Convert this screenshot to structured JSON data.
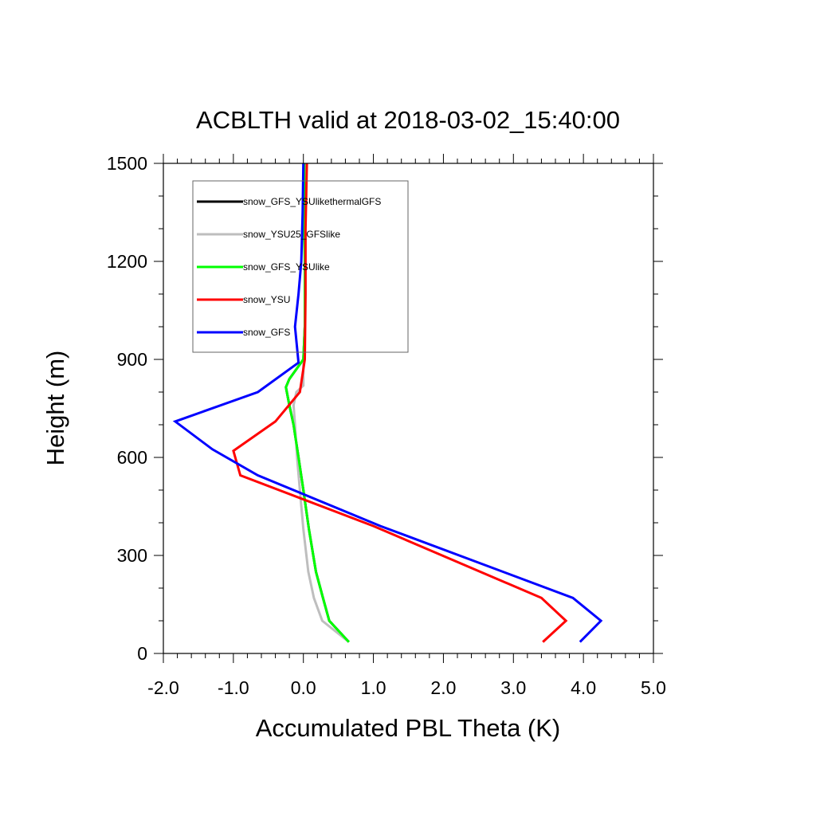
{
  "chart_data": {
    "type": "line",
    "title": "ACBLTH valid at 2018-03-02_15:40:00",
    "xlabel": "Accumulated PBL Theta (K)",
    "ylabel": "Height (m)",
    "xlim": [
      -2.0,
      5.0
    ],
    "ylim": [
      0,
      1500
    ],
    "x_ticks": [
      -2.0,
      -1.0,
      0.0,
      1.0,
      2.0,
      3.0,
      4.0,
      5.0
    ],
    "x_tick_labels": [
      "-2.0",
      "-1.0",
      "0.0",
      "1.0",
      "2.0",
      "3.0",
      "4.0",
      "5.0"
    ],
    "y_ticks": [
      0,
      300,
      600,
      900,
      1200,
      1500
    ],
    "y_tick_labels": [
      "0",
      "300",
      "600",
      "900",
      "1200",
      "1500"
    ],
    "grid": false,
    "legend_position": "top-left",
    "series": [
      {
        "name": "snow_GFS_YSUlikethermalGFS",
        "color": "#000000",
        "x": [
          0.65,
          0.37,
          0.28,
          0.18,
          0.08,
          0.0,
          -0.07,
          -0.14,
          -0.2,
          -0.25,
          -0.2,
          0.0,
          0.02,
          0.02,
          0.01,
          0.01
        ],
        "y": [
          35,
          100,
          170,
          250,
          380,
          500,
          600,
          700,
          760,
          815,
          840,
          900,
          1000,
          1200,
          1400,
          1500
        ]
      },
      {
        "name": "snow_YSU25_GFSlike",
        "color": "#bebebe",
        "x": [
          0.65,
          0.27,
          0.15,
          0.07,
          0.0,
          -0.05,
          -0.09,
          -0.12,
          -0.14,
          -0.1,
          0.0,
          0.0,
          0.02,
          0.02,
          0.02,
          0.02
        ],
        "y": [
          35,
          100,
          170,
          250,
          380,
          500,
          600,
          700,
          760,
          800,
          820,
          900,
          1000,
          1200,
          1400,
          1500
        ]
      },
      {
        "name": "snow_GFS_YSUlike",
        "color": "#00ff00",
        "x": [
          0.65,
          0.37,
          0.28,
          0.18,
          0.08,
          0.0,
          -0.07,
          -0.14,
          -0.2,
          -0.25,
          -0.2,
          0.0,
          0.02,
          0.02,
          0.01,
          0.01
        ],
        "y": [
          35,
          100,
          170,
          250,
          380,
          500,
          600,
          700,
          760,
          815,
          840,
          900,
          1000,
          1200,
          1400,
          1500
        ]
      },
      {
        "name": "snow_YSU",
        "color": "#ff0000",
        "x": [
          3.42,
          3.75,
          3.4,
          1.0,
          -0.9,
          -1.0,
          -0.4,
          -0.05,
          0.02,
          0.03,
          0.03,
          0.05
        ],
        "y": [
          35,
          100,
          170,
          390,
          545,
          620,
          710,
          800,
          900,
          1100,
          1300,
          1500
        ]
      },
      {
        "name": "snow_GFS",
        "color": "#0000ff",
        "x": [
          3.95,
          4.25,
          3.85,
          1.1,
          -0.65,
          -1.3,
          -1.83,
          -0.65,
          -0.07,
          -0.12,
          -0.07,
          -0.03,
          -0.01,
          0.0
        ],
        "y": [
          35,
          100,
          170,
          390,
          545,
          625,
          710,
          800,
          890,
          1000,
          1100,
          1200,
          1350,
          1500
        ]
      }
    ]
  }
}
